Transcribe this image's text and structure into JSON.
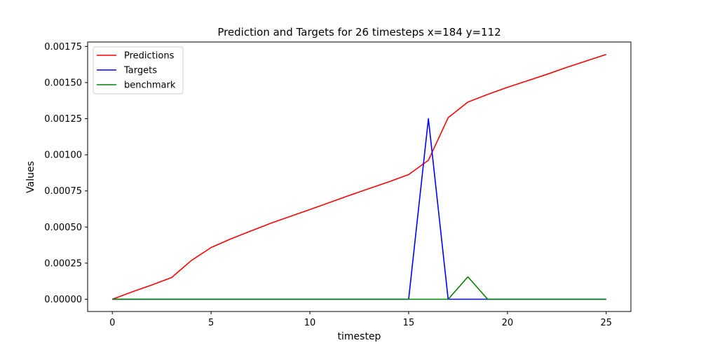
{
  "chart_data": {
    "type": "line",
    "title": "Prediction and Targets for 26 timesteps x=184 y=112",
    "xlabel": "timestep",
    "ylabel": "Values",
    "xlim": [
      -1.25,
      26.25
    ],
    "ylim": [
      -8.48e-05,
      0.0017808
    ],
    "x_ticks": [
      0,
      5,
      10,
      15,
      20,
      25
    ],
    "x_tick_labels": [
      "0",
      "5",
      "10",
      "15",
      "20",
      "25"
    ],
    "y_ticks": [
      0,
      0.00025,
      0.0005,
      0.00075,
      0.001,
      0.00125,
      0.0015,
      0.00175
    ],
    "y_tick_labels": [
      "0.00000",
      "0.00025",
      "0.00050",
      "0.00075",
      "0.00100",
      "0.00125",
      "0.00150",
      "0.00175"
    ],
    "grid": false,
    "legend_position": "top-left",
    "x": [
      0,
      1,
      2,
      3,
      4,
      5,
      6,
      7,
      8,
      9,
      10,
      11,
      12,
      13,
      14,
      15,
      16,
      17,
      18,
      19,
      20,
      21,
      22,
      23,
      24,
      25
    ],
    "series": [
      {
        "name": "Predictions",
        "color": "#ff0000",
        "values": [
          0.0,
          5.1e-05,
          9.9e-05,
          0.00015,
          0.000268,
          0.000358,
          0.000418,
          0.000472,
          0.000525,
          0.000573,
          0.000621,
          0.00067,
          0.000719,
          0.000766,
          0.000813,
          0.000863,
          0.000962,
          0.001257,
          0.001365,
          0.001418,
          0.001467,
          0.001512,
          0.001557,
          0.001605,
          0.00165,
          0.001695
        ]
      },
      {
        "name": "Targets",
        "color": "#0000ff",
        "values": [
          0,
          0,
          0,
          0,
          0,
          0,
          0,
          0,
          0,
          0,
          0,
          0,
          0,
          0,
          0,
          0,
          0.00125,
          0,
          0,
          0,
          0,
          0,
          0,
          0,
          0,
          0
        ]
      },
      {
        "name": "benchmark",
        "color": "#008000",
        "values": [
          0,
          0,
          0,
          0,
          0,
          0,
          0,
          0,
          0,
          0,
          0,
          0,
          0,
          0,
          0,
          0,
          0,
          0,
          0.000155,
          0,
          0,
          0,
          0,
          0,
          0,
          0
        ]
      }
    ]
  }
}
